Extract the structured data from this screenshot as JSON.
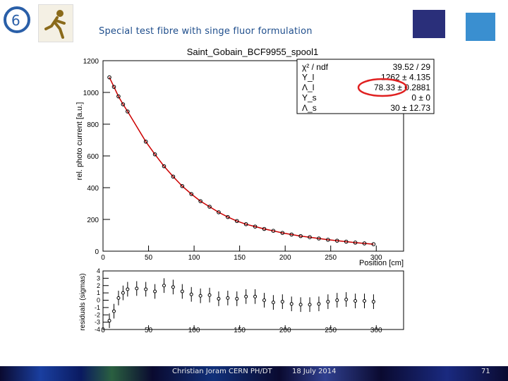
{
  "slide": {
    "title": "Special test fibre with singe fluor formulation",
    "footer": {
      "author": "Christian Joram   CERN   PH/DT",
      "date": "18 July 2014",
      "page": "71"
    }
  },
  "chart_data": [
    {
      "type": "scatter",
      "title": "Saint_Gobain_BCF9955_spool1",
      "xlabel": "Position [cm]",
      "ylabel": "rel. photo current [a.u.]",
      "xlim": [
        0,
        330
      ],
      "ylim": [
        0,
        1200
      ],
      "xticks": [
        0,
        50,
        100,
        150,
        200,
        250,
        300
      ],
      "yticks": [
        0,
        200,
        400,
        600,
        800,
        1000,
        1200
      ],
      "x": [
        7,
        12,
        17,
        22,
        27,
        47,
        57,
        67,
        77,
        87,
        97,
        107,
        117,
        127,
        137,
        147,
        157,
        167,
        177,
        187,
        197,
        207,
        217,
        227,
        237,
        247,
        257,
        267,
        277,
        287,
        297
      ],
      "y": [
        1095,
        1035,
        975,
        925,
        880,
        690,
        610,
        535,
        470,
        410,
        360,
        315,
        280,
        245,
        215,
        190,
        170,
        155,
        140,
        128,
        115,
        105,
        95,
        88,
        80,
        72,
        66,
        60,
        54,
        49,
        44
      ],
      "fit_color": "#cc0000",
      "marker_color": "#000000",
      "stats": [
        {
          "label": "χ² / ndf",
          "value": "39.52 / 29"
        },
        {
          "label": "Y_l",
          "value": "1262 ± 4.135"
        },
        {
          "label": "Λ_l",
          "value": "78.33 ± 0.2881"
        },
        {
          "label": "Y_s",
          "value": "0 ±     0"
        },
        {
          "label": "Λ_s",
          "value": "30 ± 12.73"
        }
      ],
      "highlight_color": "#e02020"
    },
    {
      "type": "scatter",
      "ylabel": "residuals (sigmas)",
      "xlim": [
        0,
        330
      ],
      "ylim": [
        -4,
        4
      ],
      "xticks": [
        0,
        50,
        100,
        150,
        200,
        250,
        300
      ],
      "yticks": [
        4,
        3,
        2,
        1,
        0,
        -1,
        -2,
        -3,
        -4
      ],
      "x": [
        7,
        12,
        17,
        22,
        27,
        37,
        47,
        57,
        67,
        77,
        87,
        97,
        107,
        117,
        127,
        137,
        147,
        157,
        167,
        177,
        187,
        197,
        207,
        217,
        227,
        237,
        247,
        257,
        267,
        277,
        287,
        297
      ],
      "y": [
        -2.8,
        -1.5,
        0.3,
        1.0,
        1.5,
        1.6,
        1.5,
        1.2,
        2.0,
        1.8,
        1.2,
        0.8,
        0.6,
        0.7,
        0.2,
        0.3,
        0.2,
        0.5,
        0.5,
        0.0,
        -0.3,
        -0.2,
        -0.5,
        -0.6,
        -0.6,
        -0.5,
        -0.2,
        0.0,
        0.1,
        -0.1,
        -0.1,
        -0.2
      ],
      "errors": 1
    }
  ]
}
